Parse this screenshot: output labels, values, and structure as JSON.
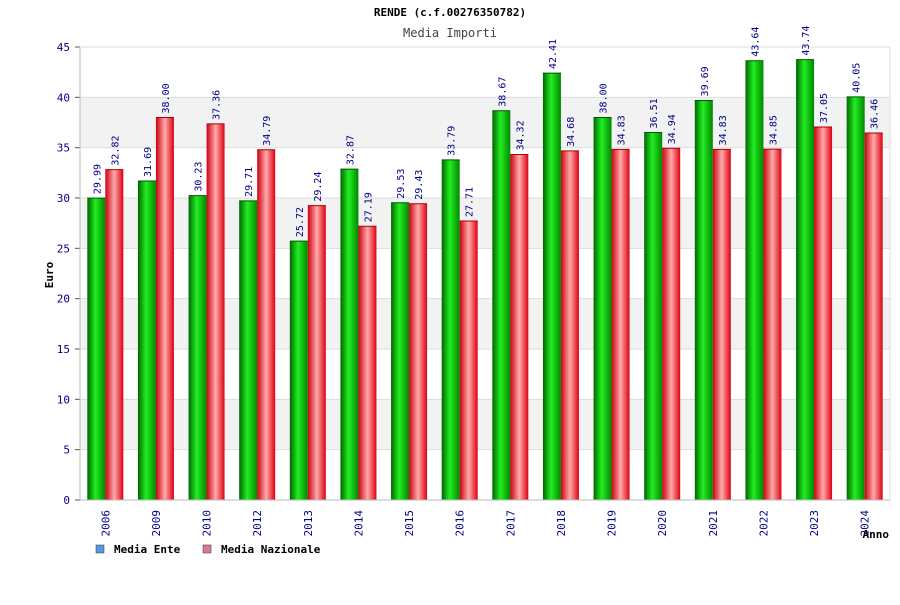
{
  "chart_data": {
    "type": "bar",
    "title": "RENDE (c.f.00276350782)",
    "subtitle": "Media Importi",
    "xlabel": "Anno",
    "ylabel": "Euro",
    "ylim": [
      0,
      45
    ],
    "yticks": [
      0,
      5,
      10,
      15,
      20,
      25,
      30,
      35,
      40,
      45
    ],
    "grid": true,
    "legend_position": "bottom-left",
    "categories": [
      "2006",
      "2009",
      "2010",
      "2012",
      "2013",
      "2014",
      "2015",
      "2016",
      "2017",
      "2018",
      "2019",
      "2020",
      "2021",
      "2022",
      "2023",
      "2024"
    ],
    "series": [
      {
        "name": "Media Ente",
        "color": "#00cc00",
        "legend_color": "#5599dd",
        "values": [
          29.99,
          31.69,
          30.23,
          29.71,
          25.72,
          32.87,
          29.53,
          33.79,
          38.67,
          42.41,
          38.0,
          36.51,
          39.69,
          43.64,
          43.74,
          40.05
        ],
        "labels": [
          "29.99",
          "31.69",
          "30.23",
          "29.71",
          "25.72",
          "32.87",
          "29.53",
          "33.79",
          "38.67",
          "42.41",
          "38.00",
          "36.51",
          "39.69",
          "43.64",
          "43.74",
          "40.05"
        ]
      },
      {
        "name": "Media Nazionale",
        "color": "#ee2233",
        "legend_color": "#dd7799",
        "values": [
          32.82,
          38.0,
          37.36,
          34.79,
          29.24,
          27.19,
          29.43,
          27.71,
          34.32,
          34.68,
          34.83,
          34.94,
          34.83,
          34.85,
          37.05,
          36.46
        ],
        "labels": [
          "32.82",
          "38.00",
          "37.36",
          "34.79",
          "29.24",
          "27.19",
          "29.43",
          "27.71",
          "34.32",
          "34.68",
          "34.83",
          "34.94",
          "34.83",
          "34.85",
          "37.05",
          "36.46"
        ]
      }
    ]
  }
}
